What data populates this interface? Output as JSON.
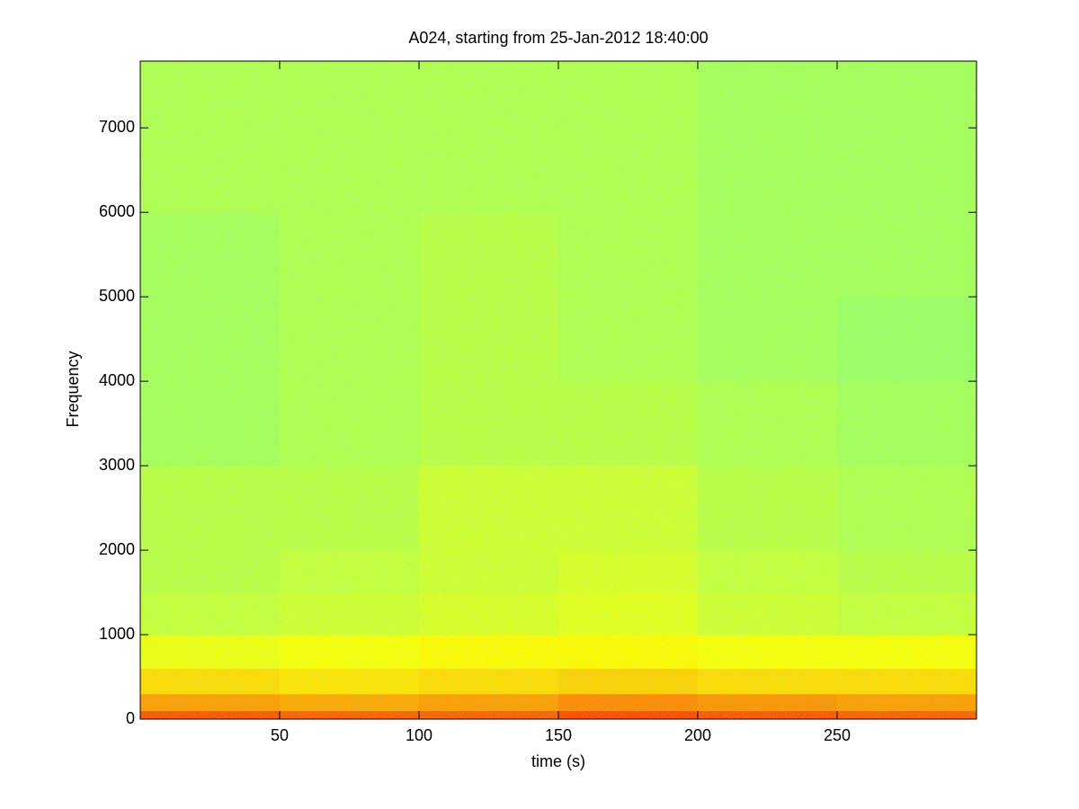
{
  "chart_data": {
    "type": "heatmap",
    "title": "A024, starting from 25-Jan-2012 18:40:00",
    "x_label": "time (s)",
    "y_label": "Frequency",
    "colormap": "jet",
    "clim": [
      0,
      1
    ],
    "x_edges": [
      0,
      50,
      100,
      150,
      200,
      250,
      300
    ],
    "y_edges": [
      0,
      100,
      300,
      600,
      1000,
      1500,
      2000,
      3000,
      4000,
      5000,
      6000,
      7790
    ],
    "values": [
      [
        0.79,
        0.78,
        0.78,
        0.8,
        0.79,
        0.78
      ],
      [
        0.72,
        0.71,
        0.72,
        0.74,
        0.73,
        0.72
      ],
      [
        0.66,
        0.65,
        0.66,
        0.67,
        0.66,
        0.66
      ],
      [
        0.61,
        0.62,
        0.63,
        0.63,
        0.62,
        0.62
      ],
      [
        0.57,
        0.58,
        0.59,
        0.6,
        0.58,
        0.57
      ],
      [
        0.56,
        0.57,
        0.58,
        0.59,
        0.57,
        0.56
      ],
      [
        0.56,
        0.56,
        0.58,
        0.58,
        0.56,
        0.55
      ],
      [
        0.54,
        0.55,
        0.56,
        0.56,
        0.55,
        0.54
      ],
      [
        0.54,
        0.55,
        0.56,
        0.55,
        0.54,
        0.53
      ],
      [
        0.54,
        0.55,
        0.56,
        0.55,
        0.54,
        0.54
      ],
      [
        0.55,
        0.55,
        0.55,
        0.55,
        0.54,
        0.54
      ]
    ],
    "xlim": [
      0,
      300
    ],
    "ylim": [
      0,
      7790
    ],
    "xticks": [
      50,
      100,
      150,
      200,
      250
    ],
    "yticks": [
      0,
      1000,
      2000,
      3000,
      4000,
      5000,
      6000,
      7000
    ]
  }
}
